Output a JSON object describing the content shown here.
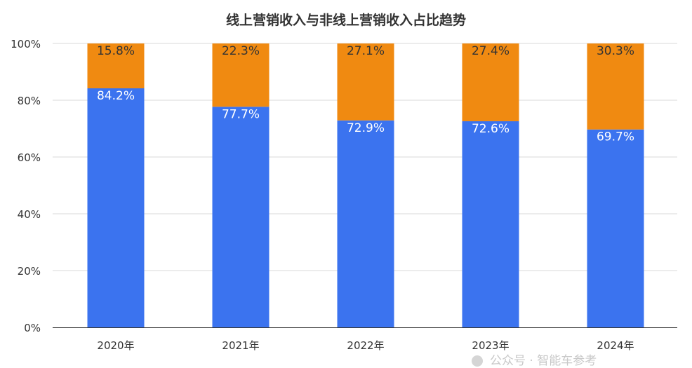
{
  "chart_data": {
    "type": "bar",
    "stacked": true,
    "title": "线上营销收入与非线上营销收入占比趋势",
    "categories": [
      "2020年",
      "2021年",
      "2022年",
      "2023年",
      "2024年"
    ],
    "series": [
      {
        "values": [
          84.2,
          77.7,
          72.9,
          72.6,
          69.7
        ],
        "labels": [
          "84.2%",
          "77.7%",
          "72.9%",
          "72.6%",
          "69.7%"
        ],
        "color": "#3b73ef",
        "label_color": "#ffffff"
      },
      {
        "values": [
          15.8,
          22.3,
          27.1,
          27.4,
          30.3
        ],
        "labels": [
          "15.8%",
          "22.3%",
          "27.1%",
          "27.4%",
          "30.3%"
        ],
        "color": "#f08a11",
        "label_color": "#333333"
      }
    ],
    "ylim": [
      0,
      100
    ],
    "yticks": [
      "0%",
      "20%",
      "40%",
      "60%",
      "80%",
      "100%"
    ],
    "grid": true,
    "grid_color": "#d9d9d9",
    "axis_color": "#333333"
  },
  "watermark": {
    "text": "公众号 · 智能车参考",
    "icon": "wechat-icon"
  }
}
